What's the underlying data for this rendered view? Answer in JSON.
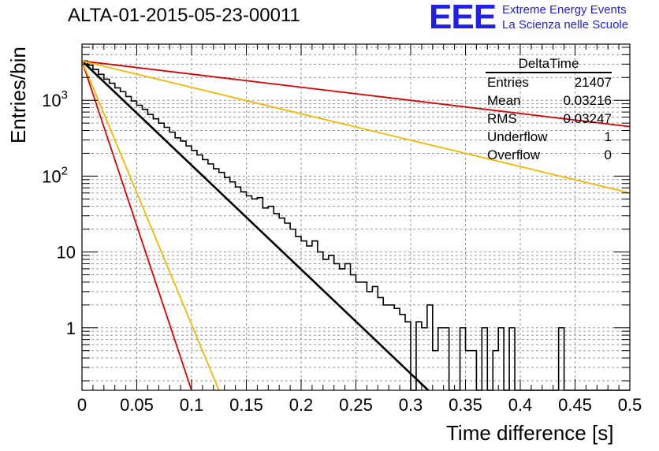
{
  "title": "ALTA-01-2015-05-23-00011",
  "logo": {
    "text": "EEE",
    "line1": "Extreme Energy Events",
    "line2": "La Scienza nelle Scuole"
  },
  "stats_box": {
    "name": "DeltaTime",
    "rows": [
      {
        "label": "Entries",
        "value": "21407"
      },
      {
        "label": "Mean",
        "value": "0.03216"
      },
      {
        "label": "RMS",
        "value": "0.03247"
      },
      {
        "label": "Underflow",
        "value": "1"
      },
      {
        "label": "Overflow",
        "value": "0"
      }
    ]
  },
  "chart_data": {
    "type": "line",
    "title": "ALTA-01-2015-05-23-00011",
    "xlabel": "Time difference [s]",
    "ylabel": "Entries/bin",
    "xlim": [
      0,
      0.5
    ],
    "ylim": [
      0.15,
      5500
    ],
    "yscale": "log",
    "grid": true,
    "x_ticks": [
      "0",
      "0.05",
      "0.1",
      "0.15",
      "0.2",
      "0.25",
      "0.3",
      "0.35",
      "0.4",
      "0.45",
      "0.5"
    ],
    "y_ticks": [
      "1",
      "10",
      "10^2",
      "10^3"
    ],
    "colors": {
      "histogram": "#000000",
      "fit": "#000000",
      "red": "#dd0000",
      "orange": "#f5b800",
      "logo": "#2020e8"
    },
    "histogram": {
      "name": "DeltaTime",
      "bin_width": 0.005,
      "x_start": 0,
      "counts": [
        3300,
        2900,
        2550,
        2200,
        1900,
        1680,
        1460,
        1300,
        1120,
        980,
        860,
        760,
        650,
        570,
        500,
        440,
        380,
        320,
        290,
        250,
        218,
        190,
        165,
        145,
        125,
        112,
        96,
        84,
        72,
        62,
        55,
        50,
        52,
        38,
        40,
        32,
        28,
        24,
        20,
        16,
        14,
        12,
        14,
        10,
        8,
        9,
        7,
        6,
        7,
        5,
        4,
        4,
        3,
        3.5,
        2.5,
        2,
        2,
        1.8,
        1.5,
        1.2,
        0,
        1.2,
        1,
        2,
        0.5,
        1,
        1,
        0,
        0,
        1,
        0.5,
        0.5,
        0,
        1,
        0,
        0.5,
        1,
        0,
        1,
        0,
        0,
        0,
        0,
        0,
        0,
        0,
        0,
        1,
        0,
        0,
        0,
        0,
        0,
        0,
        0,
        0,
        0,
        0,
        0,
        0
      ]
    },
    "lines": [
      {
        "name": "fit",
        "color": "#000000",
        "x": [
          0,
          0.316
        ],
        "y": [
          3300,
          0.15
        ]
      },
      {
        "name": "red-steep",
        "color": "#dd0000",
        "x": [
          0,
          0.1
        ],
        "y": [
          3300,
          0.15
        ]
      },
      {
        "name": "orange-steep",
        "color": "#f5b800",
        "x": [
          0,
          0.125
        ],
        "y": [
          3300,
          0.15
        ]
      },
      {
        "name": "red-shallow",
        "color": "#dd0000",
        "x": [
          0,
          0.5
        ],
        "y": [
          3300,
          450
        ]
      },
      {
        "name": "orange-shallow",
        "color": "#f5b800",
        "x": [
          0,
          0.5
        ],
        "y": [
          3300,
          60
        ]
      }
    ]
  }
}
